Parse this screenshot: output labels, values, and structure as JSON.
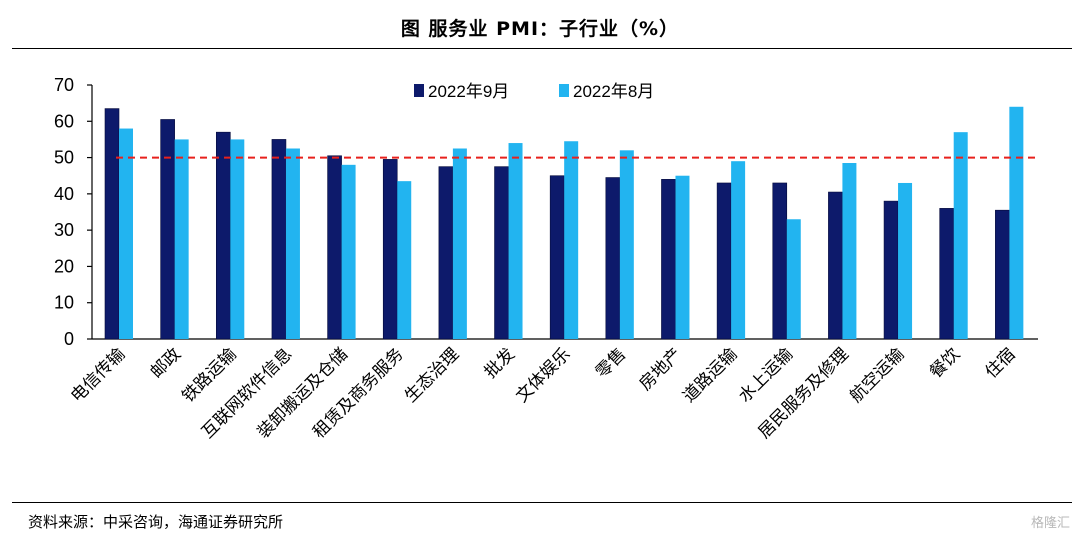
{
  "header": {
    "title": "图  服务业 PMI：子行业（%）"
  },
  "footer": {
    "source": "资料来源：中采咨询，海通证券研究所",
    "watermark": "格隆汇"
  },
  "chart_data": {
    "type": "bar",
    "categories": [
      "电信传输",
      "邮政",
      "铁路运输",
      "互联网软件信息",
      "装卸搬运及仓储",
      "租赁及商务服务",
      "生态治理",
      "批发",
      "文体娱乐",
      "零售",
      "房地产",
      "道路运输",
      "水上运输",
      "居民服务及修理",
      "航空运输",
      "餐饮",
      "住宿"
    ],
    "series": [
      {
        "name": "2022年9月",
        "color": "#0d1a6b",
        "values": [
          63.5,
          60.5,
          57.0,
          55.0,
          50.5,
          49.5,
          47.5,
          47.5,
          45.0,
          44.5,
          44.0,
          43.0,
          43.0,
          40.5,
          38.0,
          36.0,
          35.5
        ]
      },
      {
        "name": "2022年8月",
        "color": "#22b4f0",
        "values": [
          58.0,
          55.0,
          55.0,
          52.5,
          48.0,
          43.5,
          52.5,
          54.0,
          54.5,
          52.0,
          45.0,
          49.0,
          33.0,
          48.5,
          43.0,
          57.0,
          64.0
        ]
      }
    ],
    "reference_line": {
      "value": 50,
      "color": "#e8211c",
      "style": "dashed"
    },
    "yticks": [
      "0",
      "10",
      "20",
      "30",
      "40",
      "50",
      "60",
      "70"
    ],
    "ylim": [
      0,
      70
    ],
    "legend_position": "top-center",
    "grid": false
  }
}
